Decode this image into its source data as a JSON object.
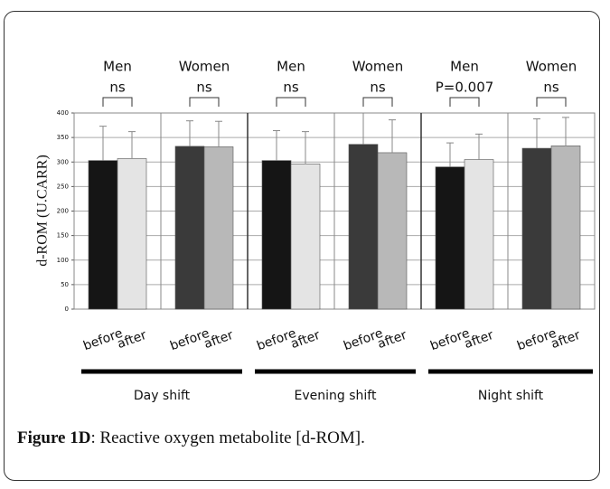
{
  "chart_data": {
    "type": "bar",
    "ylabel": "d-ROM (U.CARR)",
    "ylim": [
      0,
      400
    ],
    "yticks": [
      0,
      50,
      100,
      150,
      200,
      250,
      300,
      350,
      400
    ],
    "grid": true,
    "categories": [
      "before",
      "after",
      "before",
      "after",
      "before",
      "after",
      "before",
      "after",
      "before",
      "after",
      "before",
      "after"
    ],
    "series": [
      {
        "values": [
          303,
          307,
          332,
          331,
          303,
          296,
          336,
          319,
          290,
          305,
          328,
          333
        ],
        "errors": [
          70,
          55,
          52,
          52,
          61,
          66,
          64,
          67,
          49,
          52,
          60,
          58
        ],
        "colors": [
          "#151515",
          "#e4e4e4",
          "#3a3a3a",
          "#b8b8b8",
          "#151515",
          "#e4e4e4",
          "#3a3a3a",
          "#b8b8b8",
          "#151515",
          "#e4e4e4",
          "#3a3a3a",
          "#b8b8b8"
        ]
      }
    ],
    "groups": [
      {
        "label": "Men",
        "test": "ns"
      },
      {
        "label": "Women",
        "test": "ns"
      },
      {
        "label": "Men",
        "test": "ns"
      },
      {
        "label": "Women",
        "test": "ns"
      },
      {
        "label": "Men",
        "test": "P=0.007"
      },
      {
        "label": "Women",
        "test": "ns"
      }
    ],
    "shifts": [
      "Day shift",
      "Evening shift",
      "Night shift"
    ]
  },
  "caption": {
    "label": "Figure 1D",
    "text": ": Reactive oxygen metabolite [d-ROM]."
  }
}
